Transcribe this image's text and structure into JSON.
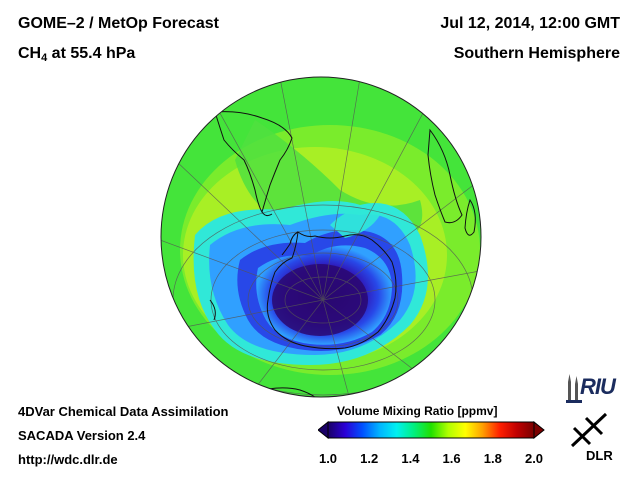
{
  "header": {
    "title": "GOME–2 / MetOp Forecast",
    "species_main": "CH",
    "species_sub": "4",
    "species_level": " at 55.4 hPa",
    "datetime": "Jul 12, 2014, 12:00 GMT",
    "region": "Southern Hemisphere"
  },
  "footer": {
    "line1": "4DVar Chemical Data Assimilation",
    "line2": "SACADA Version 2.4",
    "line3": "http://wdc.dlr.de"
  },
  "colorbar": {
    "title": "Volume Mixing Ratio [ppmv]",
    "ticks": [
      "1.0",
      "1.2",
      "1.4",
      "1.6",
      "1.8",
      "2.0"
    ],
    "min": 1.0,
    "max": 2.0,
    "colors": [
      "#1a0066",
      "#2b00d6",
      "#0050ff",
      "#00b4ff",
      "#00f0f0",
      "#00f080",
      "#20e000",
      "#b0ff00",
      "#ffff00",
      "#ffa000",
      "#ff2000",
      "#c00000",
      "#7a0000"
    ]
  },
  "map": {
    "projection": "orthographic south-polar",
    "field_colors": {
      "outer": "#44e43a",
      "ring": "#b8f020",
      "cyan": "#30e8d8",
      "light_blue": "#30a0ff",
      "blue": "#2848e8",
      "vortex": "#3010b0",
      "core": "#2a0870"
    }
  },
  "logos": {
    "riu": "RIU",
    "dlr": "DLR"
  }
}
